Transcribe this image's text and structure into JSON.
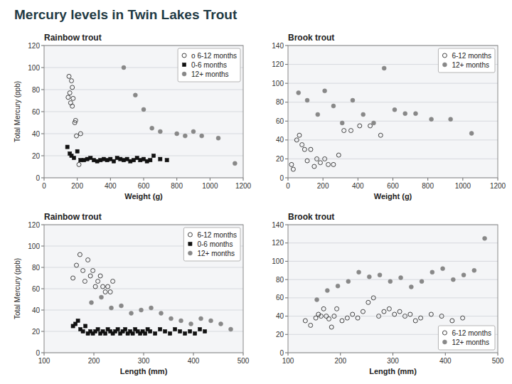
{
  "title": "Mercury levels in Twin Lakes Trout",
  "chart_data": [
    {
      "type": "scatter",
      "title": "Rainbow trout",
      "x_label": "Weight (g)",
      "y_label": "Total Mercury (ppb)",
      "xlim": [
        0,
        1200
      ],
      "ylim": [
        0,
        120
      ],
      "xticks": [
        0,
        200,
        400,
        600,
        800,
        1000,
        1200
      ],
      "yticks": [
        0,
        20,
        40,
        60,
        80,
        100,
        120
      ],
      "grid": true,
      "legend": "upper right",
      "series": [
        {
          "name": "o 6-12 months",
          "color": "#444444",
          "marker": "open-circle",
          "x": [
            150,
            165,
            170,
            145,
            155,
            175,
            160,
            170,
            185,
            190,
            195,
            220,
            210
          ],
          "values": [
            92,
            88,
            82,
            73,
            77,
            72,
            68,
            65,
            50,
            52,
            38,
            40,
            12
          ]
        },
        {
          "name": "0-6 months",
          "color": "#111111",
          "marker": "square",
          "x": [
            140,
            155,
            165,
            180,
            200,
            220,
            240,
            260,
            280,
            300,
            320,
            340,
            360,
            380,
            400,
            420,
            440,
            460,
            480,
            500,
            520,
            540,
            560,
            580,
            600,
            620,
            640,
            660,
            700,
            740
          ],
          "values": [
            28,
            22,
            20,
            18,
            24,
            16,
            16,
            17,
            18,
            16,
            15,
            16,
            17,
            16,
            17,
            15,
            18,
            17,
            16,
            17,
            15,
            16,
            18,
            16,
            17,
            15,
            16,
            20,
            17,
            16
          ]
        },
        {
          "name": "12+ months",
          "color": "#888888",
          "marker": "circle",
          "x": [
            480,
            550,
            600,
            650,
            700,
            800,
            850,
            900,
            950,
            1050,
            1150
          ],
          "values": [
            100,
            75,
            62,
            45,
            42,
            40,
            38,
            42,
            38,
            36,
            13
          ]
        }
      ]
    },
    {
      "type": "scatter",
      "title": "Brook trout",
      "x_label": "Weight (g)",
      "xlim": [
        0,
        1200
      ],
      "ylim": [
        0,
        140
      ],
      "xticks": [
        0,
        200,
        400,
        600,
        800,
        1000,
        1200
      ],
      "yticks": [
        0,
        20,
        40,
        60,
        80,
        100,
        120,
        140
      ],
      "grid": true,
      "legend": "upper right",
      "series": [
        {
          "name": "6-12 months",
          "color": "#444444",
          "marker": "open-circle",
          "x": [
            20,
            30,
            50,
            65,
            80,
            95,
            110,
            130,
            150,
            165,
            185,
            210,
            230,
            260,
            290,
            320,
            360,
            410,
            470,
            530
          ],
          "values": [
            14,
            9,
            40,
            45,
            35,
            30,
            18,
            30,
            12,
            20,
            16,
            20,
            14,
            14,
            24,
            50,
            50,
            55,
            55,
            45
          ]
        },
        {
          "name": "12+ months",
          "color": "#888888",
          "marker": "circle",
          "x": [
            60,
            110,
            170,
            210,
            260,
            310,
            370,
            430,
            490,
            550,
            610,
            670,
            730,
            820,
            930,
            1050
          ],
          "values": [
            90,
            82,
            67,
            92,
            76,
            58,
            82,
            67,
            58,
            116,
            72,
            68,
            68,
            62,
            62,
            47
          ]
        }
      ]
    },
    {
      "type": "scatter",
      "title": "Rainbow trout",
      "x_label": "Length (mm)",
      "y_label": "Total Mercury (ppb)",
      "xlim": [
        100,
        500
      ],
      "ylim": [
        0,
        120
      ],
      "xticks": [
        100,
        200,
        300,
        400,
        500
      ],
      "yticks": [
        0,
        20,
        40,
        60,
        80,
        100,
        120
      ],
      "grid": true,
      "legend": "upper right",
      "series": [
        {
          "name": "6-12 months",
          "color": "#444444",
          "marker": "open-circle",
          "x": [
            158,
            165,
            172,
            178,
            182,
            188,
            193,
            198,
            203,
            208,
            213,
            218,
            223,
            228,
            233,
            238
          ],
          "values": [
            70,
            82,
            92,
            77,
            67,
            87,
            72,
            77,
            62,
            67,
            72,
            62,
            57,
            62,
            57,
            67
          ]
        },
        {
          "name": "0-6 months",
          "color": "#111111",
          "marker": "square",
          "x": [
            158,
            163,
            168,
            173,
            178,
            183,
            188,
            193,
            198,
            203,
            208,
            213,
            218,
            223,
            228,
            233,
            238,
            243,
            248,
            253,
            258,
            263,
            268,
            273,
            278,
            283,
            288,
            293,
            298,
            303,
            308,
            313,
            323,
            333,
            343,
            353,
            363,
            373,
            383,
            393,
            403,
            413,
            423
          ],
          "values": [
            25,
            27,
            30,
            22,
            20,
            25,
            18,
            20,
            18,
            20,
            22,
            18,
            20,
            18,
            22,
            20,
            18,
            20,
            22,
            18,
            20,
            22,
            18,
            20,
            18,
            22,
            20,
            18,
            20,
            18,
            22,
            20,
            18,
            22,
            20,
            18,
            22,
            20,
            18,
            20,
            18,
            22,
            20
          ]
        },
        {
          "name": "12+ months",
          "color": "#888888",
          "marker": "circle",
          "x": [
            195,
            215,
            235,
            255,
            275,
            295,
            315,
            335,
            355,
            375,
            395,
            415,
            435,
            455,
            475
          ],
          "values": [
            47,
            52,
            42,
            44,
            37,
            40,
            42,
            37,
            32,
            30,
            27,
            32,
            30,
            27,
            22
          ]
        }
      ]
    },
    {
      "type": "scatter",
      "title": "Brook trout",
      "x_label": "Length (mm)",
      "xlim": [
        100,
        500
      ],
      "ylim": [
        0,
        140
      ],
      "xticks": [
        100,
        200,
        300,
        400,
        500
      ],
      "yticks": [
        0,
        20,
        40,
        60,
        80,
        100,
        120,
        140
      ],
      "grid": true,
      "legend": "lower right",
      "series": [
        {
          "name": "6-12 months",
          "color": "#444444",
          "marker": "open-circle",
          "x": [
            133,
            143,
            153,
            158,
            163,
            168,
            173,
            178,
            183,
            188,
            193,
            203,
            213,
            223,
            233,
            243,
            253,
            263,
            273,
            283,
            293,
            303,
            313,
            323,
            333,
            343,
            353,
            373,
            393,
            413,
            433
          ],
          "values": [
            35,
            30,
            38,
            42,
            40,
            48,
            40,
            37,
            28,
            40,
            48,
            35,
            38,
            42,
            38,
            45,
            55,
            60,
            40,
            45,
            48,
            42,
            45,
            40,
            42,
            35,
            38,
            42,
            40,
            35,
            38
          ]
        },
        {
          "name": "12+ months",
          "color": "#888888",
          "marker": "circle",
          "x": [
            155,
            175,
            195,
            215,
            235,
            255,
            275,
            295,
            315,
            335,
            355,
            375,
            395,
            415,
            435,
            455,
            475
          ],
          "values": [
            58,
            68,
            73,
            78,
            88,
            83,
            85,
            78,
            82,
            72,
            78,
            88,
            92,
            80,
            85,
            90,
            125
          ]
        }
      ]
    }
  ]
}
